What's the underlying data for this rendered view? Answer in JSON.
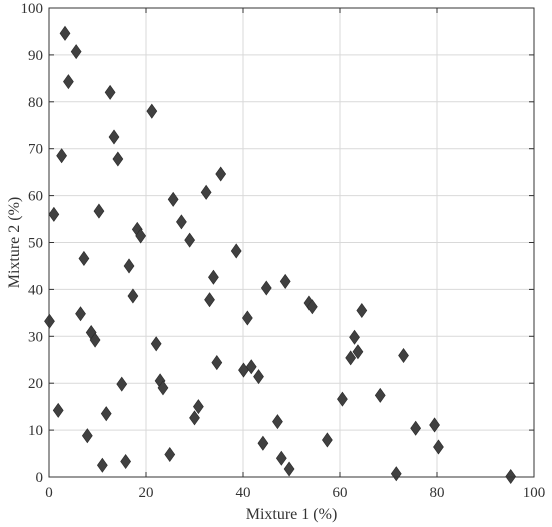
{
  "chart_data": {
    "type": "scatter",
    "xlabel": "Mixture 1 (%)",
    "ylabel": "Mixture 2 (%)",
    "xlim": [
      0,
      100
    ],
    "ylim": [
      0,
      100
    ],
    "xticks": [
      0,
      20,
      40,
      60,
      80,
      100
    ],
    "yticks": [
      0,
      10,
      20,
      30,
      40,
      50,
      60,
      70,
      80,
      90,
      100
    ],
    "grid": true,
    "marker": "diamond",
    "marker_color": "#404040",
    "points": [
      {
        "x": 0.1,
        "y": 33.2
      },
      {
        "x": 1.0,
        "y": 56.0
      },
      {
        "x": 1.9,
        "y": 14.2
      },
      {
        "x": 2.6,
        "y": 68.5
      },
      {
        "x": 3.3,
        "y": 94.6
      },
      {
        "x": 4.0,
        "y": 84.3
      },
      {
        "x": 5.6,
        "y": 90.7
      },
      {
        "x": 6.5,
        "y": 34.8
      },
      {
        "x": 7.2,
        "y": 46.6
      },
      {
        "x": 7.9,
        "y": 8.8
      },
      {
        "x": 8.7,
        "y": 30.8
      },
      {
        "x": 9.5,
        "y": 29.2
      },
      {
        "x": 10.3,
        "y": 56.7
      },
      {
        "x": 11.0,
        "y": 2.5
      },
      {
        "x": 11.8,
        "y": 13.5
      },
      {
        "x": 12.6,
        "y": 82.0
      },
      {
        "x": 13.4,
        "y": 72.5
      },
      {
        "x": 14.2,
        "y": 67.8
      },
      {
        "x": 15.0,
        "y": 19.8
      },
      {
        "x": 15.8,
        "y": 3.3
      },
      {
        "x": 16.5,
        "y": 45.0
      },
      {
        "x": 17.3,
        "y": 38.6
      },
      {
        "x": 18.2,
        "y": 52.8
      },
      {
        "x": 18.9,
        "y": 51.4
      },
      {
        "x": 21.2,
        "y": 78.0
      },
      {
        "x": 22.1,
        "y": 28.4
      },
      {
        "x": 22.9,
        "y": 20.5
      },
      {
        "x": 23.5,
        "y": 19.0
      },
      {
        "x": 24.9,
        "y": 4.8
      },
      {
        "x": 25.6,
        "y": 59.2
      },
      {
        "x": 27.3,
        "y": 54.4
      },
      {
        "x": 29.0,
        "y": 50.5
      },
      {
        "x": 30.0,
        "y": 12.6
      },
      {
        "x": 30.8,
        "y": 15.0
      },
      {
        "x": 32.4,
        "y": 60.7
      },
      {
        "x": 33.1,
        "y": 37.8
      },
      {
        "x": 33.9,
        "y": 42.6
      },
      {
        "x": 34.6,
        "y": 24.4
      },
      {
        "x": 35.4,
        "y": 64.6
      },
      {
        "x": 38.6,
        "y": 48.2
      },
      {
        "x": 40.1,
        "y": 22.8
      },
      {
        "x": 40.9,
        "y": 33.9
      },
      {
        "x": 41.7,
        "y": 23.5
      },
      {
        "x": 43.2,
        "y": 21.4
      },
      {
        "x": 44.1,
        "y": 7.2
      },
      {
        "x": 44.8,
        "y": 40.3
      },
      {
        "x": 47.1,
        "y": 11.8
      },
      {
        "x": 47.9,
        "y": 4.0
      },
      {
        "x": 48.7,
        "y": 41.7
      },
      {
        "x": 49.5,
        "y": 1.7
      },
      {
        "x": 53.6,
        "y": 37.1
      },
      {
        "x": 54.3,
        "y": 36.3
      },
      {
        "x": 57.4,
        "y": 7.9
      },
      {
        "x": 60.5,
        "y": 16.6
      },
      {
        "x": 62.2,
        "y": 25.4
      },
      {
        "x": 63.0,
        "y": 29.8
      },
      {
        "x": 63.7,
        "y": 26.7
      },
      {
        "x": 64.5,
        "y": 35.5
      },
      {
        "x": 68.3,
        "y": 17.4
      },
      {
        "x": 71.6,
        "y": 0.7
      },
      {
        "x": 73.1,
        "y": 25.9
      },
      {
        "x": 75.6,
        "y": 10.4
      },
      {
        "x": 79.5,
        "y": 11.1
      },
      {
        "x": 80.3,
        "y": 6.4
      },
      {
        "x": 95.2,
        "y": 0.1
      }
    ]
  }
}
